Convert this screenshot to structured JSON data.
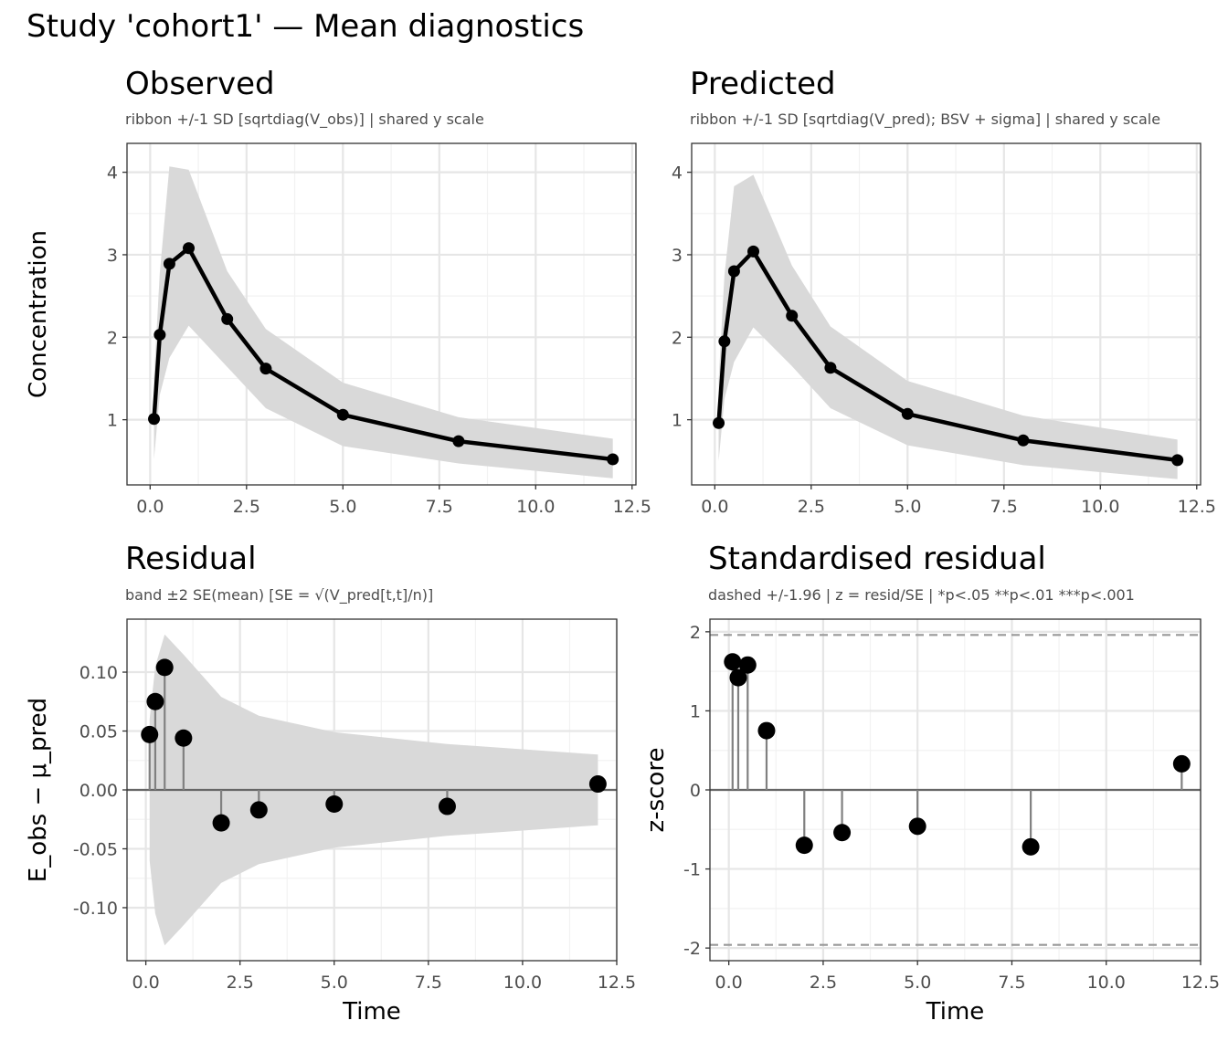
{
  "title": "Study 'cohort1'  —  Mean diagnostics",
  "chart_data": [
    {
      "type": "line",
      "panel_title": "Observed",
      "subtitle": "ribbon +/-1 SD  [sqrtdiag(V_obs)]  |  shared y scale",
      "xlabel": "",
      "ylabel": "Concentration",
      "x_ticks": [
        "0.0",
        "2.5",
        "5.0",
        "7.5",
        "10.0",
        "12.5"
      ],
      "y_ticks": [
        "1",
        "2",
        "3",
        "4"
      ],
      "xlim": [
        -0.6,
        12.6
      ],
      "ylim": [
        0.21,
        4.35
      ],
      "x": [
        0.1,
        0.25,
        0.5,
        1,
        2,
        3,
        5,
        8,
        12
      ],
      "values": [
        1.01,
        2.03,
        2.89,
        3.08,
        2.22,
        1.62,
        1.06,
        0.74,
        0.52
      ],
      "ribbon_lower": [
        0.52,
        1.3,
        1.75,
        2.14,
        1.64,
        1.14,
        0.68,
        0.47,
        0.29
      ],
      "ribbon_upper": [
        1.5,
        2.78,
        4.07,
        4.03,
        2.8,
        2.1,
        1.45,
        1.03,
        0.77
      ],
      "grid": true
    },
    {
      "type": "line",
      "panel_title": "Predicted",
      "subtitle": "ribbon +/-1 SD  [sqrtdiag(V_pred);  BSV + sigma]  |  shared y scale",
      "xlabel": "",
      "ylabel": "",
      "x_ticks": [
        "0.0",
        "2.5",
        "5.0",
        "7.5",
        "10.0",
        "12.5"
      ],
      "y_ticks": [
        "1",
        "2",
        "3",
        "4"
      ],
      "xlim": [
        -0.6,
        12.6
      ],
      "ylim": [
        0.21,
        4.35
      ],
      "x": [
        0.1,
        0.25,
        0.5,
        1,
        2,
        3,
        5,
        8,
        12
      ],
      "values": [
        0.96,
        1.95,
        2.8,
        3.04,
        2.26,
        1.63,
        1.07,
        0.75,
        0.51
      ],
      "ribbon_lower": [
        0.5,
        1.25,
        1.7,
        2.12,
        1.65,
        1.14,
        0.69,
        0.45,
        0.28
      ],
      "ribbon_upper": [
        1.48,
        2.75,
        3.83,
        3.97,
        2.87,
        2.13,
        1.47,
        1.05,
        0.76
      ],
      "grid": true
    },
    {
      "type": "scatter",
      "panel_title": "Residual",
      "subtitle": "band ±2 SE(mean)  [SE = √(V_pred[t,t]/n)]",
      "xlabel": "Time",
      "ylabel": "E_obs − μ_pred",
      "x_ticks": [
        "0.0",
        "2.5",
        "5.0",
        "7.5",
        "10.0",
        "12.5"
      ],
      "y_ticks": [
        "-0.10",
        "-0.05",
        "0.00",
        "0.05",
        "0.10"
      ],
      "xlim": [
        -0.5,
        12.5
      ],
      "ylim": [
        -0.145,
        0.145
      ],
      "x": [
        0.1,
        0.25,
        0.5,
        1,
        2,
        3,
        5,
        8,
        12
      ],
      "values": [
        0.047,
        0.075,
        0.104,
        0.044,
        -0.028,
        -0.017,
        -0.012,
        -0.014,
        0.005
      ],
      "band_half_width": [
        0.06,
        0.105,
        0.132,
        0.115,
        0.079,
        0.063,
        0.049,
        0.039,
        0.03
      ],
      "grid": true
    },
    {
      "type": "scatter",
      "panel_title": "Standardised residual",
      "subtitle": "dashed +/-1.96  |  z = resid/SE  |  *p<.05 **p<.01 ***p<.001",
      "xlabel": "Time",
      "ylabel": "z-score",
      "x_ticks": [
        "0.0",
        "2.5",
        "5.0",
        "7.5",
        "10.0",
        "12.5"
      ],
      "y_ticks": [
        "-2",
        "-1",
        "0",
        "1",
        "2"
      ],
      "xlim": [
        -0.5,
        12.5
      ],
      "ylim": [
        -2.16,
        2.16
      ],
      "x": [
        0.1,
        0.25,
        0.5,
        1,
        2,
        3,
        5,
        8,
        12
      ],
      "values": [
        1.62,
        1.42,
        1.58,
        0.75,
        -0.7,
        -0.54,
        -0.46,
        -0.72,
        0.33
      ],
      "reference_lines": [
        1.96,
        -1.96
      ],
      "grid": true
    }
  ]
}
